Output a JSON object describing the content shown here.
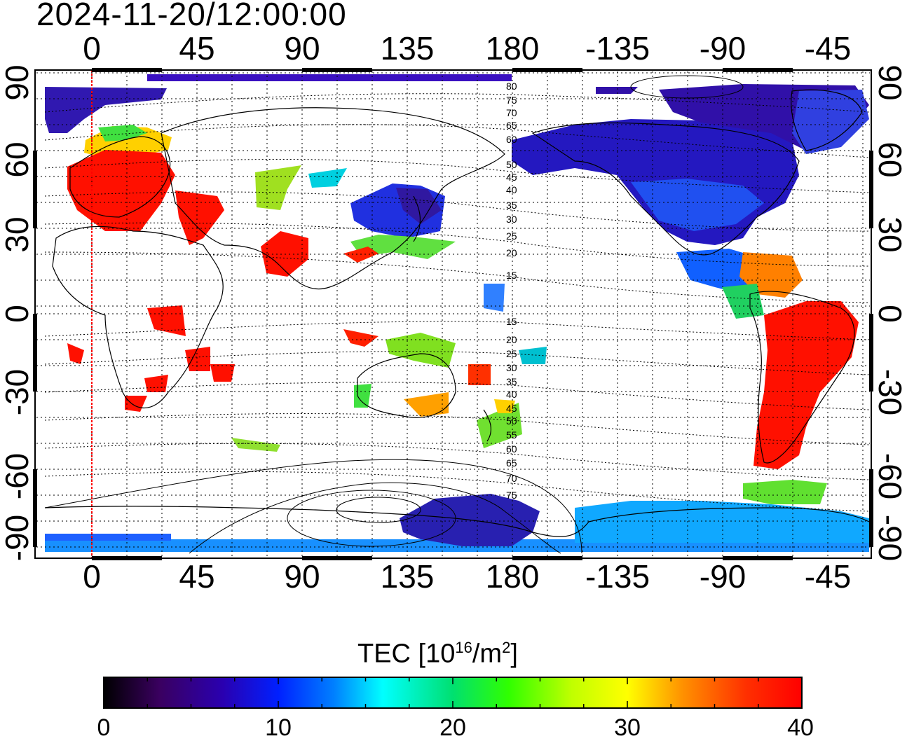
{
  "title": "2024-11-20/12:00:00",
  "x_axis": {
    "ticks": [
      "0",
      "45",
      "90",
      "135",
      "180",
      "-135",
      "-90",
      "-45"
    ]
  },
  "y_axis": {
    "ticks": [
      "90",
      "60",
      "30",
      "0",
      "-30",
      "-60",
      "-90"
    ]
  },
  "colorbar": {
    "label": "TEC  [10",
    "label_exp": "16",
    "label_unit": "/m",
    "label_unit_exp": "2",
    "label_close": "]",
    "ticks": [
      "0",
      "10",
      "20",
      "30",
      "40"
    ],
    "colors": [
      "#000000",
      "#3a0060",
      "#2000c8",
      "#0040ff",
      "#00b0ff",
      "#00ffff",
      "#00e060",
      "#40ff00",
      "#e0ff00",
      "#ffff00",
      "#ff8000",
      "#ff2000",
      "#ff0000"
    ]
  },
  "contour_labels": [
    "80",
    "75",
    "70",
    "65",
    "60",
    "50",
    "45",
    "40",
    "35",
    "30",
    "25",
    "20",
    "15",
    "15",
    "20",
    "25",
    "30",
    "35",
    "40",
    "45",
    "50",
    "55",
    "60",
    "65",
    "70",
    "75"
  ],
  "chart_data": {
    "type": "heatmap",
    "title": "2024-11-20/12:00:00",
    "variable": "TEC  [10^16/m^2]",
    "xlim": [
      -15,
      345
    ],
    "ylim": [
      -90,
      90
    ],
    "x_ticks": [
      0,
      45,
      90,
      135,
      180,
      -135,
      -90,
      -45
    ],
    "y_ticks": [
      90,
      60,
      30,
      0,
      -30,
      -60,
      -90
    ],
    "color_range": [
      0,
      40
    ],
    "colormap": "rainbow"
  }
}
